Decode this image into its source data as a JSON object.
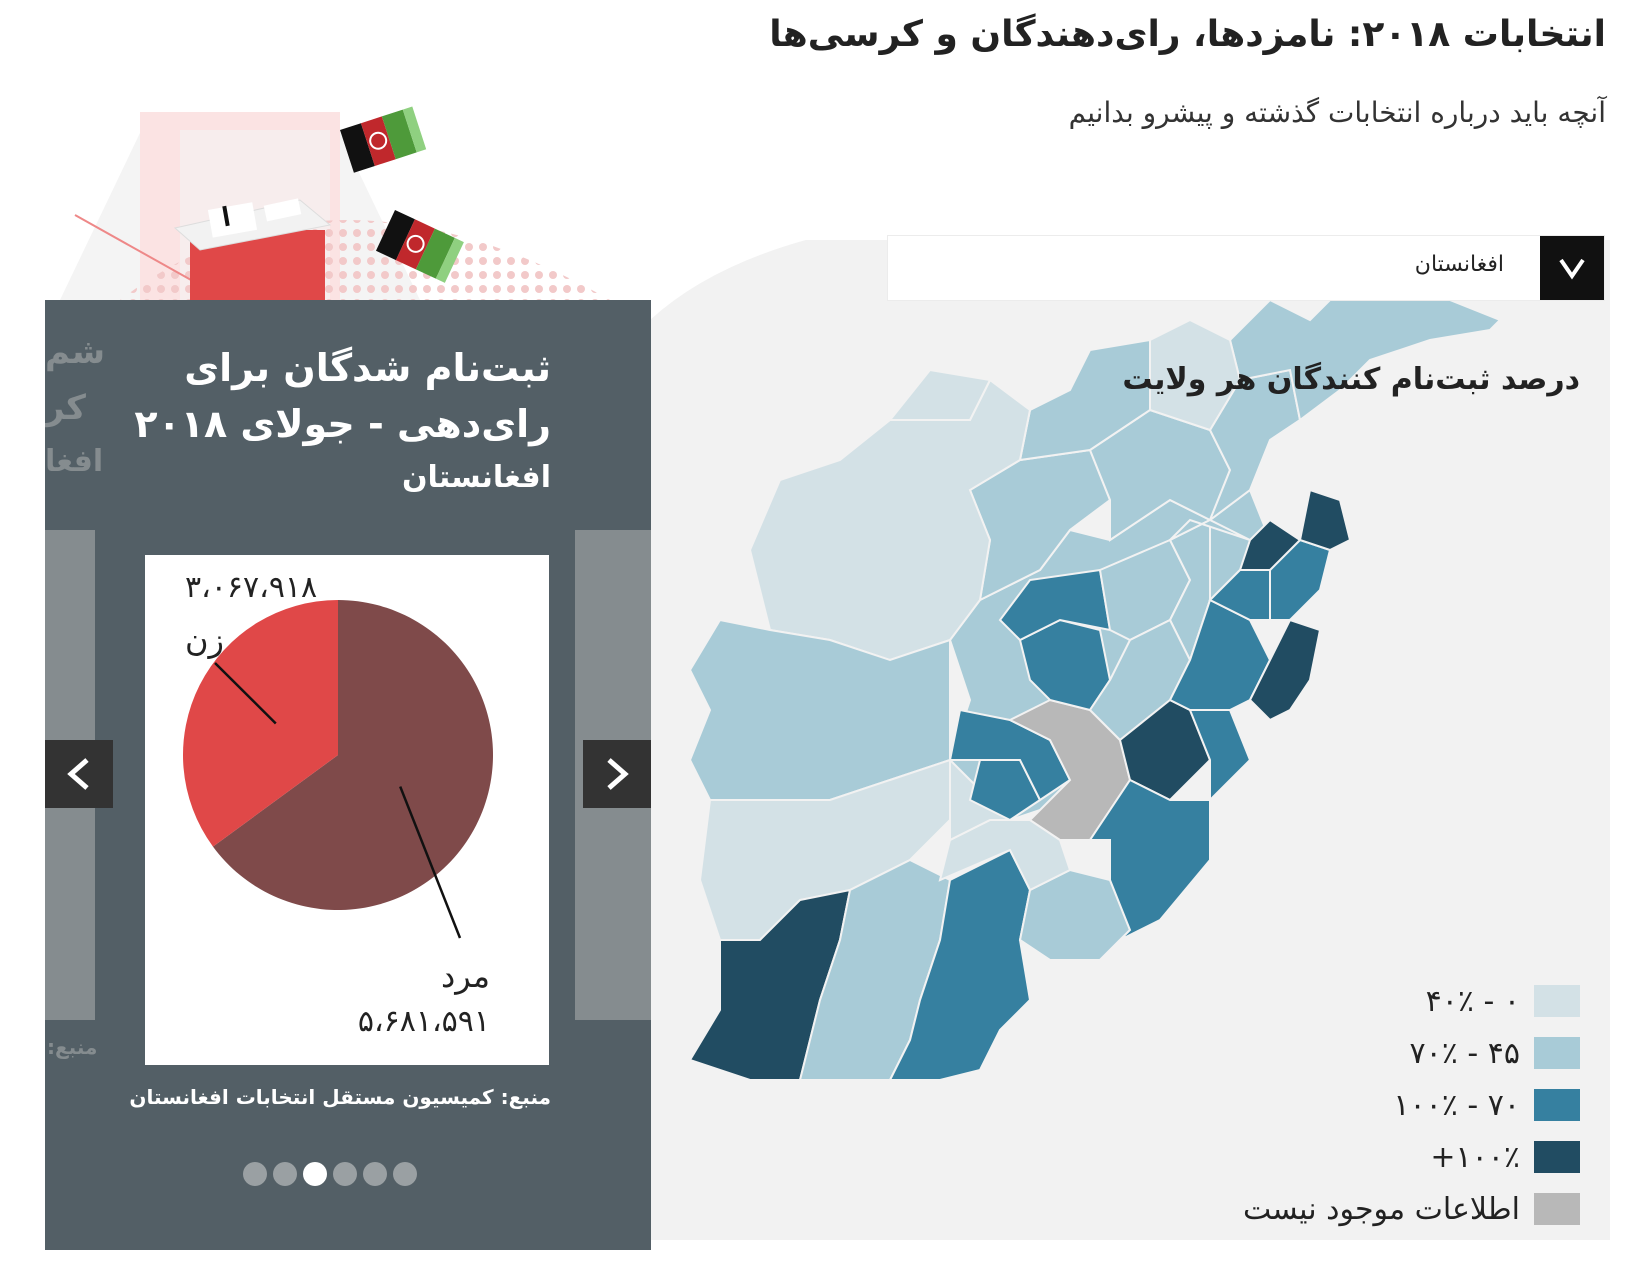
{
  "header": {
    "title": "انتخابات ۲۰۱۸: نامزدها، رای‌دهندگان و کرسی‌ها",
    "subtitle": "آنچه باید درباره انتخابات گذشته و پیشرو بدانیم"
  },
  "region_select": {
    "value": "افغانستان",
    "toggle_icon": "chevron-down-icon"
  },
  "map": {
    "title": "درصد ثبت‌نام کنندگان هر ولایت",
    "legend": [
      {
        "label": "۰ - ۴۰٪",
        "color": "#d3e1e6"
      },
      {
        "label": "۴۵ - ۷۰٪",
        "color": "#a8cbd7"
      },
      {
        "label": "۷۰ - ۱۰۰٪",
        "color": "#3680a0"
      },
      {
        "label": "۱۰۰٪+",
        "color": "#214c62"
      },
      {
        "label": "اطلاعات موجود نیست",
        "color": "#b8b8b8"
      }
    ]
  },
  "card": {
    "title": "ثبت‌نام شدگان برای رای‌دهی - جولای ۲۰۱۸",
    "subtitle": "افغانستان",
    "ghost_lines": [
      "شم",
      "کر",
      "افغا"
    ],
    "ghost_source": "منبع:",
    "source": "منبع: کمیسیون مستقل انتخابات افغانستان",
    "nav_prev_icon": "chevron-left-icon",
    "nav_next_icon": "chevron-right-icon",
    "dots_total": 6,
    "dots_active": 3
  },
  "chart_data": {
    "type": "pie",
    "title": "ثبت‌نام شدگان برای رای‌دهی - جولای ۲۰۱۸",
    "subtitle": "افغانستان",
    "slices": [
      {
        "label": "زن",
        "value": 3067918,
        "value_text": "۳،۰۶۷،۹۱۸",
        "color": "#e04848"
      },
      {
        "label": "مرد",
        "value": 5681591,
        "value_text": "۵،۶۸۱،۵۹۱",
        "color": "#7f4a4a"
      }
    ]
  }
}
